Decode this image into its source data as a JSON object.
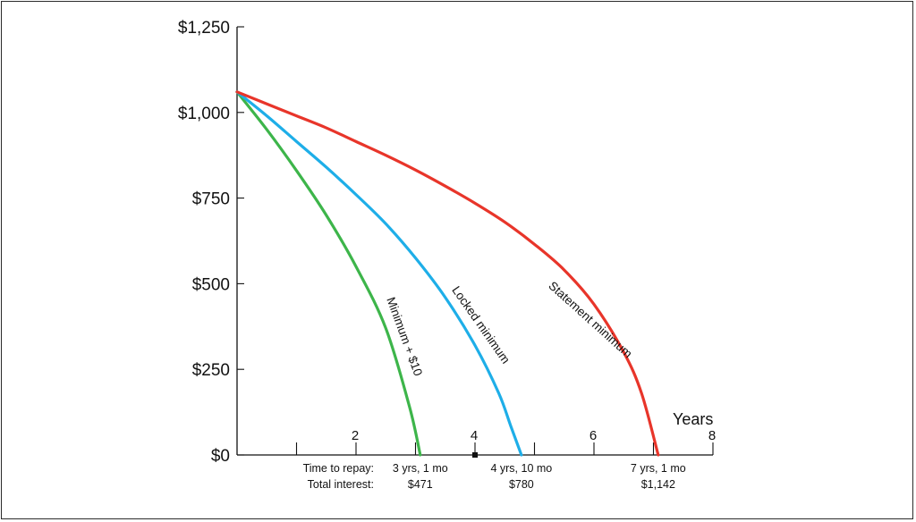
{
  "chart_data": {
    "type": "line",
    "xlabel": "Years",
    "xlim": [
      0,
      8
    ],
    "ylim": [
      0,
      1250
    ],
    "x_ticks": [
      {
        "value": 1,
        "label": ""
      },
      {
        "value": 2,
        "label": "2"
      },
      {
        "value": 3,
        "label": ""
      },
      {
        "value": 4,
        "label": "4"
      },
      {
        "value": 5,
        "label": ""
      },
      {
        "value": 6,
        "label": "6"
      },
      {
        "value": 7,
        "label": ""
      },
      {
        "value": 8,
        "label": "8"
      }
    ],
    "y_ticks": [
      {
        "value": 0,
        "label": "$0"
      },
      {
        "value": 250,
        "label": "$250"
      },
      {
        "value": 500,
        "label": "$500"
      },
      {
        "value": 750,
        "label": "$750"
      },
      {
        "value": 1000,
        "label": "$1,000"
      },
      {
        "value": 1250,
        "label": "$1,250"
      }
    ],
    "x_marker": 4,
    "series": [
      {
        "name": "Minimum + $10",
        "color": "#3db54a",
        "x": [
          0,
          0.5,
          1,
          1.5,
          2,
          2.5,
          2.9,
          3.08
        ],
        "y": [
          1060,
          950,
          830,
          700,
          550,
          370,
          140,
          0
        ]
      },
      {
        "name": "Locked minimum",
        "color": "#1eaee8",
        "x": [
          0,
          0.5,
          1,
          1.5,
          2,
          2.5,
          3,
          3.5,
          4,
          4.4,
          4.6,
          4.78
        ],
        "y": [
          1060,
          990,
          915,
          840,
          760,
          675,
          575,
          460,
          320,
          180,
          85,
          0
        ]
      },
      {
        "name": "Statement minimum",
        "color": "#e8352a",
        "x": [
          0,
          0.5,
          1,
          1.5,
          2,
          2.5,
          3,
          3.5,
          4,
          4.5,
          5,
          5.5,
          6,
          6.5,
          6.8,
          7.08
        ],
        "y": [
          1060,
          1025,
          990,
          955,
          915,
          875,
          832,
          785,
          735,
          680,
          615,
          540,
          440,
          300,
          180,
          0
        ]
      }
    ],
    "footer": {
      "row1_label": "Time to repay:",
      "row2_label": "Total interest:",
      "items": [
        {
          "x": 3.08,
          "time": "3 yrs, 1 mo",
          "interest": "$471"
        },
        {
          "x": 4.78,
          "time": "4 yrs, 10 mo",
          "interest": "$780"
        },
        {
          "x": 7.08,
          "time": "7 yrs, 1 mo",
          "interest": "$1,142"
        }
      ]
    }
  }
}
